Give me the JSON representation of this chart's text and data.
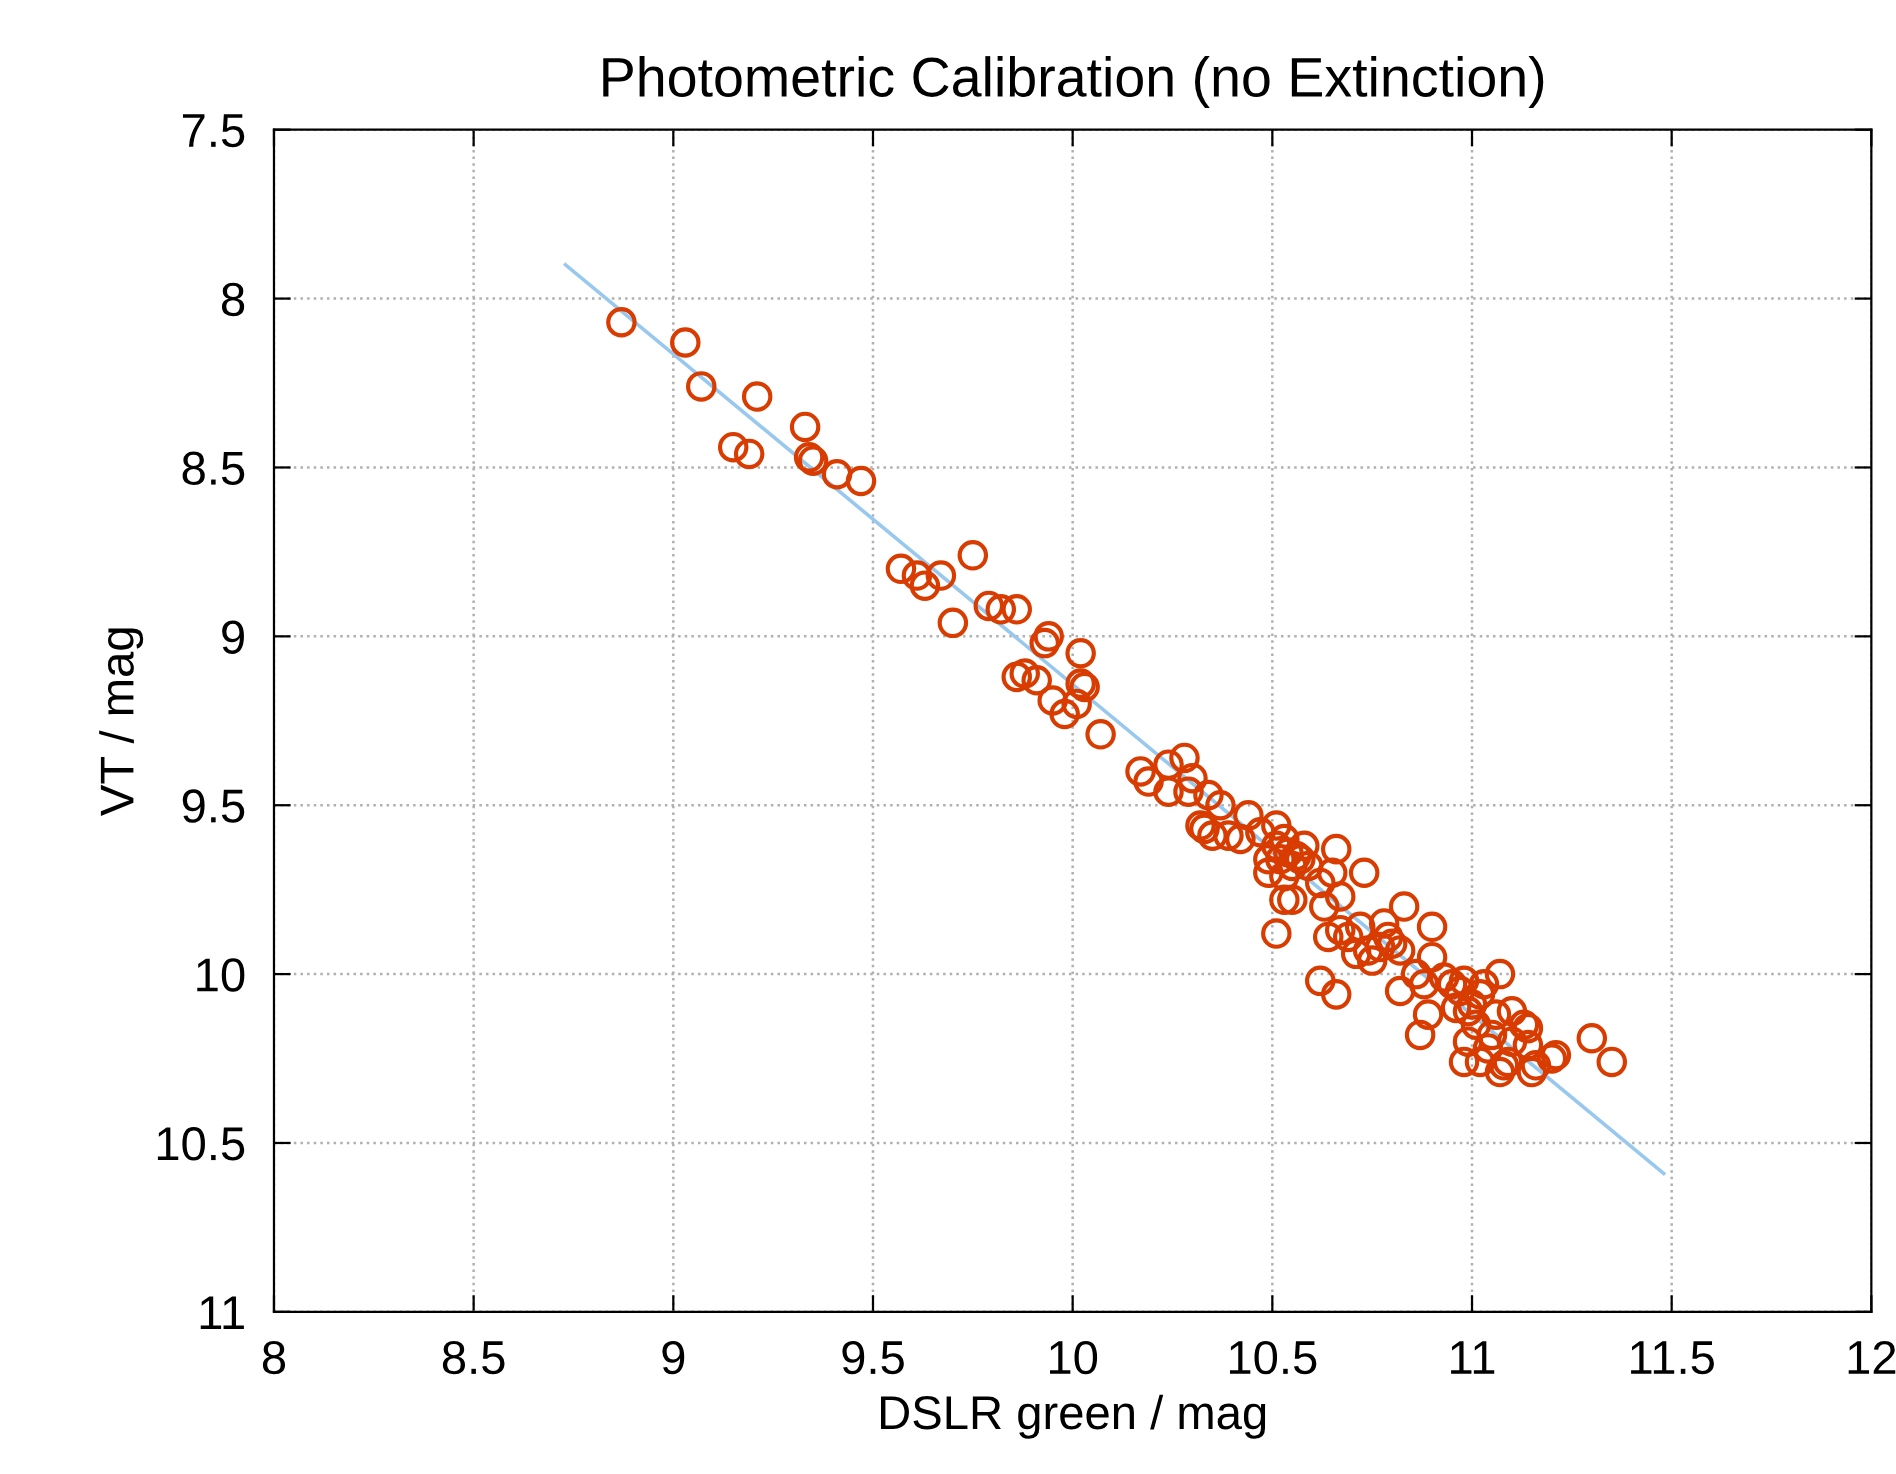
{
  "chart_data": {
    "type": "scatter",
    "title": "Photometric Calibration (no Extinction)",
    "xlabel": "DSLR green / mag",
    "ylabel": "VT / mag",
    "xlim": [
      8,
      12
    ],
    "xticks": [
      8,
      8.5,
      9,
      9.5,
      10,
      10.5,
      11,
      11.5,
      12
    ],
    "ylim": [
      11,
      7.5
    ],
    "yticks": [
      7.5,
      8,
      8.5,
      9,
      9.5,
      10,
      10.5,
      11
    ],
    "grid": true,
    "legend": false,
    "series": [
      {
        "marker": "circle",
        "color": "#d83c00",
        "x": [
          8.87,
          9.03,
          9.07,
          9.21,
          9.15,
          9.19,
          9.33,
          9.34,
          9.35,
          9.41,
          9.47,
          9.57,
          9.61,
          9.63,
          9.67,
          9.7,
          9.75,
          9.79,
          9.82,
          9.86,
          9.86,
          9.88,
          9.91,
          9.93,
          9.94,
          9.95,
          9.98,
          10.01,
          10.02,
          10.02,
          10.03,
          10.07,
          10.17,
          10.19,
          10.24,
          10.24,
          10.28,
          10.29,
          10.3,
          10.32,
          10.33,
          10.34,
          10.37,
          10.35,
          10.39,
          10.42,
          10.44,
          10.47,
          10.49,
          10.49,
          10.51,
          10.51,
          10.52,
          10.53,
          10.53,
          10.54,
          10.55,
          10.56,
          10.53,
          10.55,
          10.58,
          10.59,
          10.51,
          10.57,
          10.62,
          10.63,
          10.65,
          10.64,
          10.66,
          10.67,
          10.67,
          10.69,
          10.71,
          10.72,
          10.73,
          10.74,
          10.75,
          10.78,
          10.79,
          10.8,
          10.82,
          10.83,
          10.77,
          10.62,
          10.66,
          10.82,
          10.86,
          10.88,
          10.87,
          10.89,
          10.9,
          10.9,
          10.93,
          10.95,
          10.96,
          10.97,
          10.98,
          10.99,
          10.98,
          10.99,
          11.0,
          11.01,
          11.02,
          11.03,
          11.02,
          11.04,
          11.05,
          11.06,
          11.07,
          11.07,
          11.08,
          11.09,
          11.1,
          11.1,
          11.13,
          11.14,
          11.14,
          11.15,
          11.16,
          11.2,
          11.21,
          11.3,
          11.35
        ],
        "values": [
          8.07,
          8.13,
          8.26,
          8.29,
          8.44,
          8.46,
          8.38,
          8.47,
          8.48,
          8.52,
          8.54,
          8.8,
          8.82,
          8.85,
          8.82,
          8.96,
          8.76,
          8.91,
          8.92,
          8.92,
          9.12,
          9.11,
          9.13,
          9.02,
          9.0,
          9.19,
          9.23,
          9.2,
          9.05,
          9.14,
          9.15,
          9.29,
          9.4,
          9.43,
          9.38,
          9.46,
          9.36,
          9.46,
          9.42,
          9.56,
          9.57,
          9.47,
          9.5,
          9.59,
          9.59,
          9.6,
          9.53,
          9.58,
          9.66,
          9.7,
          9.62,
          9.56,
          9.66,
          9.71,
          9.6,
          9.64,
          9.68,
          9.65,
          9.78,
          9.78,
          9.62,
          9.68,
          9.88,
          9.66,
          9.73,
          9.8,
          9.7,
          9.89,
          9.63,
          9.77,
          9.87,
          9.89,
          9.94,
          9.86,
          9.7,
          9.93,
          9.96,
          9.85,
          9.89,
          9.91,
          9.93,
          9.8,
          9.92,
          10.02,
          10.06,
          10.05,
          10.0,
          10.03,
          10.18,
          10.12,
          9.86,
          9.95,
          10.01,
          10.03,
          10.1,
          10.05,
          10.02,
          10.11,
          10.26,
          10.2,
          10.09,
          10.15,
          10.06,
          10.03,
          10.26,
          10.22,
          10.18,
          10.12,
          10.29,
          10.0,
          10.27,
          10.26,
          10.11,
          10.2,
          10.15,
          10.21,
          10.16,
          10.29,
          10.27,
          10.25,
          10.24,
          10.19,
          10.26
        ]
      },
      {
        "type": "line",
        "color": "#99c8ee",
        "x": [
          8.73,
          11.48
        ],
        "values": [
          7.9,
          10.59
        ]
      }
    ]
  }
}
